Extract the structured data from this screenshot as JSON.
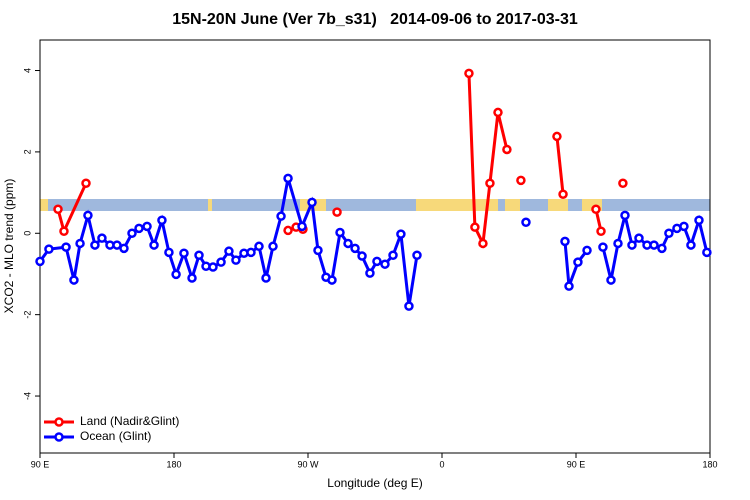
{
  "chart_data": {
    "type": "line",
    "title": "15N-20N June (Ver 7b_s31)   2014-09-06 to 2017-03-31",
    "xlabel": "Longitude (deg E)",
    "ylabel": "XCO2 - MLO trend (ppm)",
    "xlim": [
      90,
      540
    ],
    "ylim": [
      -5.4,
      4.75
    ],
    "xticks": [
      {
        "value": 90,
        "label": "90 E"
      },
      {
        "value": 180,
        "label": "180"
      },
      {
        "value": 270,
        "label": "90 W"
      },
      {
        "value": 360,
        "label": "0"
      },
      {
        "value": 450,
        "label": "90 E"
      },
      {
        "value": 540,
        "label": "180"
      }
    ],
    "yticks": [
      -4,
      -2,
      0,
      2,
      4
    ],
    "legend": "bottom-left",
    "series": [
      {
        "name": "Land (Nadir&Glint)",
        "color": "#ff0000",
        "x": [
          102.1,
          106.1,
          120.9,
          null,
          256.6,
          262,
          266.6,
          null,
          289.5,
          null,
          378.1,
          382.1,
          387.5,
          392.2,
          397.6,
          403.6,
          null,
          413,
          null,
          437.2,
          441.3,
          null,
          463.4,
          466.8,
          null,
          481.5
        ],
        "values": [
          0.59,
          0.05,
          1.23,
          null,
          0.07,
          0.15,
          0.1,
          null,
          0.52,
          null,
          3.93,
          0.15,
          -0.25,
          1.23,
          2.97,
          2.06,
          null,
          1.3,
          null,
          2.38,
          0.96,
          null,
          0.59,
          0.05,
          null,
          1.23
        ]
      },
      {
        "name": "Ocean (Glint)",
        "color": "#0000ff",
        "x": [
          90,
          96,
          107.5,
          112.8,
          116.9,
          122.2,
          126.9,
          131.6,
          137,
          141.7,
          146.4,
          151.8,
          156.5,
          161.9,
          166.6,
          171.9,
          176.6,
          181.4,
          186.7,
          192.1,
          196.8,
          201.5,
          206.2,
          211.6,
          216.9,
          221.6,
          227,
          231.7,
          237.1,
          241.8,
          246.5,
          251.9,
          256.6,
          266,
          272.7,
          276.7,
          282.1,
          286.1,
          291.5,
          296.9,
          301.6,
          306.3,
          311.6,
          316.3,
          321.7,
          327.1,
          332.4,
          337.8,
          343.2,
          null,
          416.4,
          null,
          442.6,
          445.3,
          451.3,
          457.4,
          null,
          468.1,
          473.5,
          478.2,
          482.9,
          487.6,
          492.3,
          497.7,
          502.4,
          507.7,
          512.4,
          517.8,
          522.5,
          527.2,
          532.6,
          537.9
        ],
        "values": [
          -0.69,
          -0.39,
          -0.34,
          -1.15,
          -0.25,
          0.44,
          -0.29,
          -0.12,
          -0.29,
          -0.29,
          -0.37,
          0,
          0.12,
          0.17,
          -0.29,
          0.32,
          -0.47,
          -1.01,
          -0.49,
          -1.1,
          -0.54,
          -0.81,
          -0.83,
          -0.71,
          -0.44,
          -0.66,
          -0.49,
          -0.47,
          -0.32,
          -1.1,
          -0.32,
          0.42,
          1.35,
          0.17,
          0.76,
          -0.42,
          -1.08,
          -1.15,
          0.02,
          -0.25,
          -0.37,
          -0.56,
          -0.98,
          -0.69,
          -0.76,
          -0.54,
          -0.02,
          -1.79,
          -0.54,
          null,
          0.27,
          null,
          -0.2,
          -1.3,
          -0.71,
          -0.42,
          null,
          -0.34,
          -1.15,
          -0.25,
          0.44,
          -0.29,
          -0.12,
          -0.29,
          -0.29,
          -0.37,
          0,
          0.12,
          0.17,
          -0.29,
          0.32,
          -0.47
        ]
      }
    ]
  }
}
